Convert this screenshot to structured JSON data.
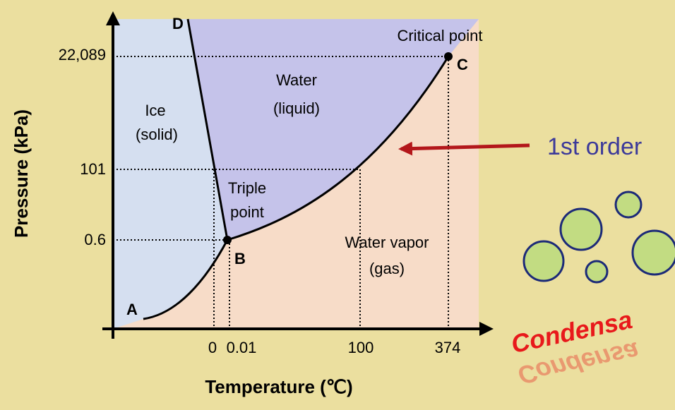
{
  "diagram": {
    "axes": {
      "y_title": "Pressure (kPa)",
      "x_title": "Temperature (℃)",
      "y_labels": [
        "22,089",
        "101",
        "0.6"
      ],
      "x_labels": [
        "0",
        "0.01",
        "100",
        "374"
      ]
    },
    "regions": {
      "ice": [
        "Ice",
        "(solid)"
      ],
      "liquid": [
        "Water",
        "(liquid)"
      ],
      "vapor": [
        "Water vapor",
        "(gas)"
      ]
    },
    "points": {
      "A": "A",
      "B": "B",
      "C": "C",
      "D": "D",
      "triple": [
        "Triple",
        "point"
      ],
      "critical": "Critical point"
    },
    "annotation": "1st order",
    "caption": "Condensa"
  }
}
